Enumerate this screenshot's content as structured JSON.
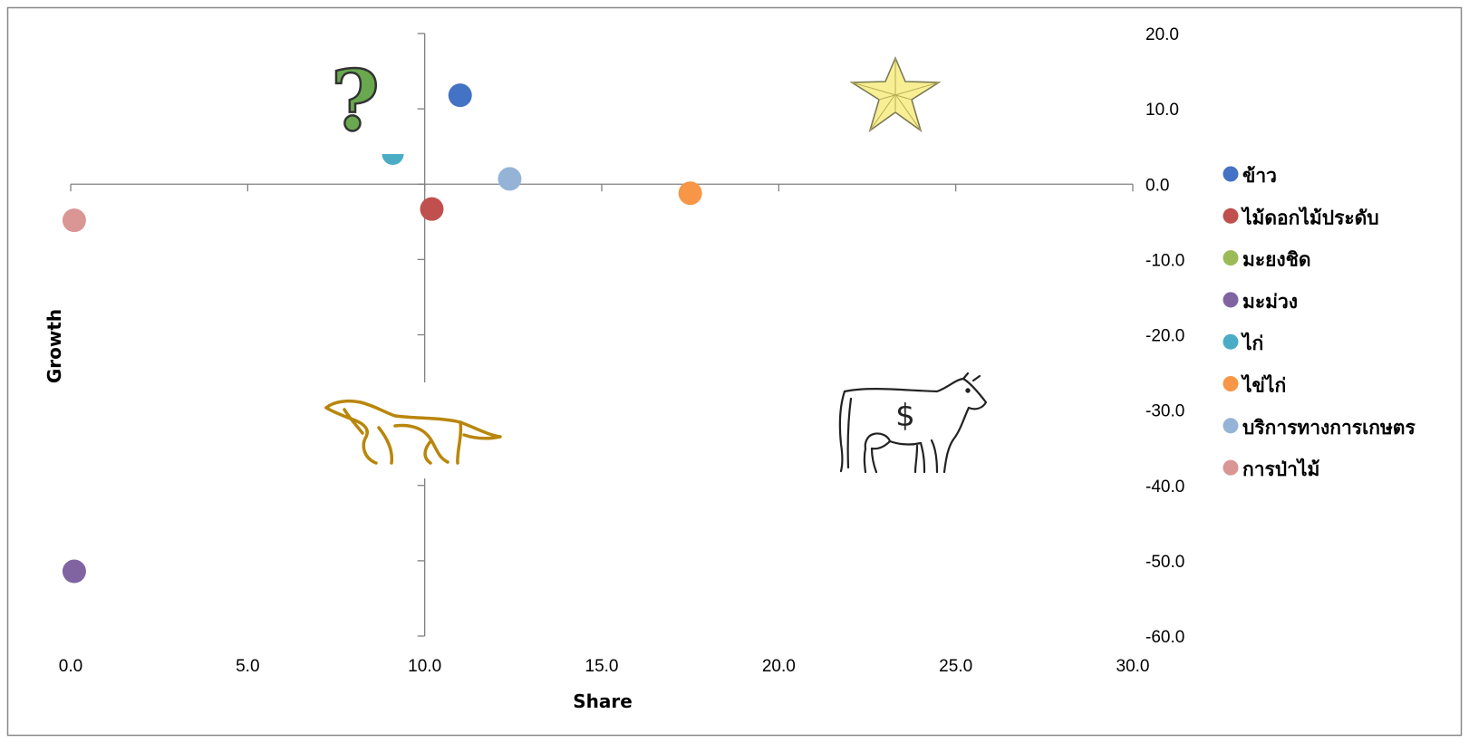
{
  "chart_data": {
    "type": "scatter",
    "title": "",
    "xlabel": "Share",
    "ylabel": "Growth",
    "xlim": [
      0,
      30
    ],
    "ylim": [
      -60,
      20
    ],
    "x_ticks": [
      "0.0",
      "5.0",
      "10.0",
      "15.0",
      "20.0",
      "25.0",
      "30.0"
    ],
    "y_ticks": [
      "20.0",
      "10.0",
      "0.0",
      "-10.0",
      "-20.0",
      "-30.0",
      "-40.0",
      "-50.0",
      "-60.0"
    ],
    "legend_position": "right",
    "grid": false,
    "series": [
      {
        "name": "ข้าว",
        "color": "#4472c4",
        "x": 11.0,
        "y": 11.8
      },
      {
        "name": "ไม้ดอกไม้ประดับ",
        "color": "#c0504d",
        "x": 10.2,
        "y": -3.3
      },
      {
        "name": "มะยงชิด",
        "color": "#9bbb59",
        "x": null,
        "y": null
      },
      {
        "name": "มะม่วง",
        "color": "#8064a2",
        "x": 0.1,
        "y": -51.4
      },
      {
        "name": "ไก่",
        "color": "#4bacc6",
        "x": 9.1,
        "y": 4.0
      },
      {
        "name": "ไข่ไก่",
        "color": "#f79646",
        "x": 17.5,
        "y": -1.2
      },
      {
        "name": "บริการทางการเกษตร",
        "color": "#95b3d7",
        "x": 12.4,
        "y": 0.7
      },
      {
        "name": "การป่าไม้",
        "color": "#d99694",
        "x": 0.1,
        "y": -4.8
      }
    ],
    "quadrant_icons": [
      "question-mark",
      "star",
      "dog",
      "cash-cow"
    ]
  }
}
